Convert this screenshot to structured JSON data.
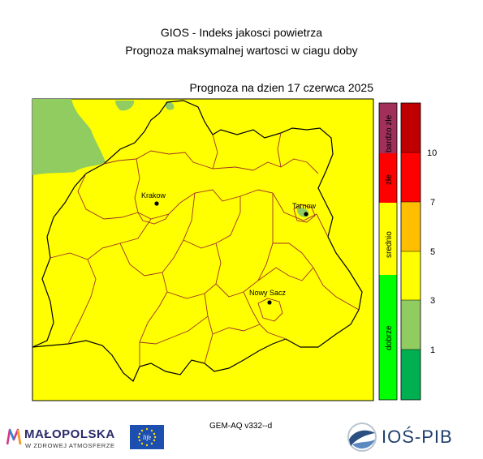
{
  "header": {
    "title_line1": "GIOS - Indeks jakosci powietrza",
    "title_line2": "Prognoza maksymalnej wartosci w ciagu doby",
    "forecast_date": "Prognoza na dzien  17 czerwca 2025"
  },
  "map": {
    "region_fill": "#ffff00",
    "good_fill": "#90cc60",
    "cities": [
      {
        "name": "Krakow"
      },
      {
        "name": "Tarnow"
      },
      {
        "name": "Nowy Sacz"
      }
    ]
  },
  "legend": {
    "category_bar": [
      {
        "label": "bardzo złe",
        "color": "#a0305a"
      },
      {
        "label": "złe",
        "color": "#ff0000"
      },
      {
        "label": "srednio",
        "color": "#ffff00"
      },
      {
        "label": "dobrze",
        "color": "#00ff00"
      }
    ],
    "scale_bar": [
      {
        "color": "#c00000"
      },
      {
        "color": "#ff0000"
      },
      {
        "color": "#ffbf00"
      },
      {
        "color": "#ffff00"
      },
      {
        "color": "#90cc60"
      },
      {
        "color": "#00b050"
      }
    ],
    "ticks": [
      "10",
      "7",
      "5",
      "3",
      "1"
    ]
  },
  "footer": {
    "model": "GEM-AQ v332--d",
    "malopolska_name": "MAŁOPOLSKA",
    "malopolska_sub": "W ZDROWEJ ATMOSFERZE",
    "ios_name": "IOŚ-PIB"
  }
}
